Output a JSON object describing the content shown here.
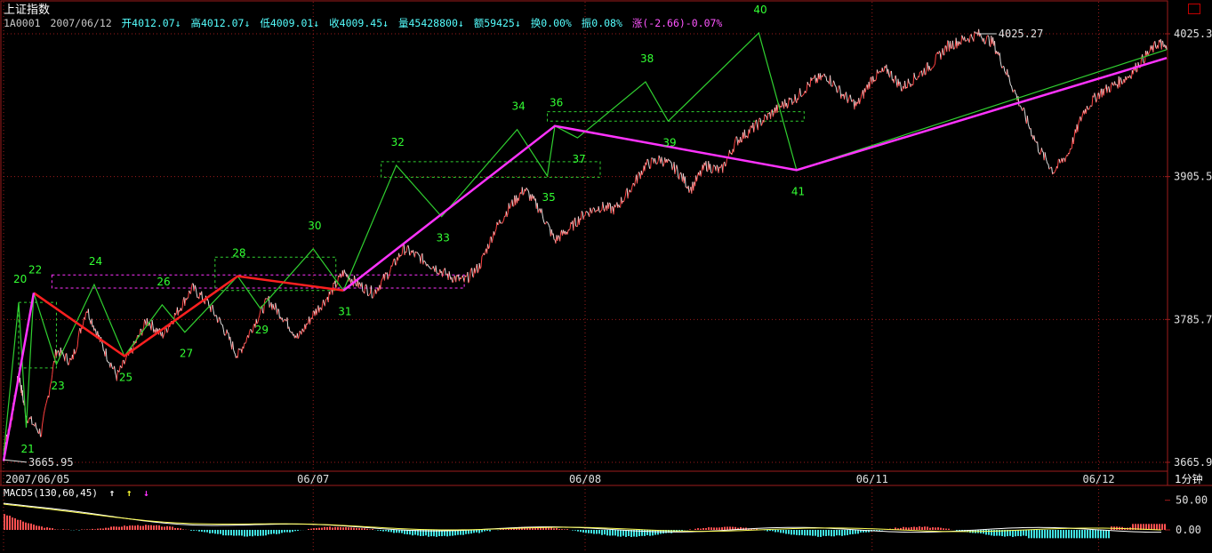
{
  "header": {
    "title": "上证指数",
    "code": "1A0001",
    "date": "2007/06/12",
    "open": "开4012.07↓",
    "high": "高4012.07↓",
    "low": "低4009.01↓",
    "close": "收4009.45↓",
    "volume": "量45428800↓",
    "amount": "额59425↓",
    "turnover": "换0.00%",
    "amplitude": "振0.08%",
    "change": "涨(-2.66)-0.07%"
  },
  "period_button": "1分钟",
  "macd_label": "MACD5(130,60,45)",
  "macd_arrows": [
    "↑",
    "↑",
    "↓"
  ],
  "colors": {
    "background": "#000000",
    "grid": "#9e1b1b",
    "price_up": "#ff4040",
    "price_down": "#e0e0e0",
    "zigzag_minor": "#30d030",
    "zigzag_mid": "#ff2020",
    "zigzag_major": "#ff33ff",
    "label_green": "#33ff33",
    "axis_text": "#e0e0e0",
    "macd_pos": "#ff5050",
    "macd_neg": "#40e0e0"
  },
  "chart_data": {
    "type": "line",
    "series_type": "1-minute price line with zigzag wave annotations",
    "y_ticks": [
      "4025.3",
      "3905.5",
      "3785.7",
      "3665.9"
    ],
    "ylim": [
      3665.9,
      4025.3
    ],
    "x_ticks": [
      "2007/06/05",
      "06/07",
      "06/08",
      "06/11",
      "06/12"
    ],
    "annotations": {
      "max_label": "4025.27",
      "min_label": "3665.95"
    },
    "price_points": [
      [
        0.0,
        3676
      ],
      [
        0.5,
        3700
      ],
      [
        1.0,
        3740
      ],
      [
        1.5,
        3705
      ],
      [
        2.5,
        3690
      ],
      [
        3.5,
        3760
      ],
      [
        4.5,
        3750
      ],
      [
        5.5,
        3795
      ],
      [
        6.5,
        3765
      ],
      [
        7.5,
        3738
      ],
      [
        8.5,
        3760
      ],
      [
        9.5,
        3785
      ],
      [
        10.5,
        3772
      ],
      [
        11.5,
        3792
      ],
      [
        12.5,
        3812
      ],
      [
        13.5,
        3800
      ],
      [
        14.5,
        3780
      ],
      [
        15.5,
        3755
      ],
      [
        16.5,
        3780
      ],
      [
        17.5,
        3802
      ],
      [
        18.5,
        3788
      ],
      [
        19.5,
        3770
      ],
      [
        20.5,
        3790
      ],
      [
        21.5,
        3805
      ],
      [
        22.5,
        3825
      ],
      [
        23.5,
        3815
      ],
      [
        24.5,
        3808
      ],
      [
        25.5,
        3825
      ],
      [
        26.5,
        3845
      ],
      [
        27.5,
        3838
      ],
      [
        28.5,
        3830
      ],
      [
        29.5,
        3822
      ],
      [
        30.5,
        3818
      ],
      [
        31.5,
        3830
      ],
      [
        32.5,
        3860
      ],
      [
        33.5,
        3880
      ],
      [
        34.5,
        3895
      ],
      [
        35.5,
        3878
      ],
      [
        36.5,
        3852
      ],
      [
        37.5,
        3862
      ],
      [
        38.5,
        3875
      ],
      [
        39.5,
        3880
      ],
      [
        40.5,
        3878
      ],
      [
        41.5,
        3895
      ],
      [
        42.5,
        3915
      ],
      [
        43.5,
        3920
      ],
      [
        44.5,
        3912
      ],
      [
        45.5,
        3895
      ],
      [
        46.5,
        3915
      ],
      [
        47.5,
        3910
      ],
      [
        48.5,
        3935
      ],
      [
        49.5,
        3945
      ],
      [
        50.5,
        3955
      ],
      [
        51.5,
        3965
      ],
      [
        52.5,
        3972
      ],
      [
        53.5,
        3985
      ],
      [
        54.5,
        3990
      ],
      [
        55.5,
        3975
      ],
      [
        56.5,
        3965
      ],
      [
        57.5,
        3988
      ],
      [
        58.5,
        3995
      ],
      [
        59.5,
        3980
      ],
      [
        60.5,
        3990
      ],
      [
        61.5,
        4000
      ],
      [
        62.5,
        4015
      ],
      [
        63.5,
        4020
      ],
      [
        64.5,
        4025
      ],
      [
        65.5,
        4018
      ],
      [
        66.5,
        3990
      ],
      [
        67.5,
        3960
      ],
      [
        68.5,
        3930
      ],
      [
        69.5,
        3910
      ],
      [
        70.5,
        3925
      ],
      [
        71.5,
        3960
      ],
      [
        72.5,
        3975
      ],
      [
        73.5,
        3982
      ],
      [
        74.5,
        3990
      ],
      [
        75.5,
        4005
      ],
      [
        76.5,
        4018
      ],
      [
        77.0,
        4012
      ]
    ],
    "waves": [
      {
        "label": "20",
        "x": 1.0,
        "y": 3800
      },
      {
        "label": "21",
        "x": 1.5,
        "y": 3695
      },
      {
        "label": "22",
        "x": 2.0,
        "y": 3808
      },
      {
        "label": "23",
        "x": 3.5,
        "y": 3748
      },
      {
        "label": "24",
        "x": 6.0,
        "y": 3815
      },
      {
        "label": "25",
        "x": 8.0,
        "y": 3755
      },
      {
        "label": "26",
        "x": 10.5,
        "y": 3798
      },
      {
        "label": "27",
        "x": 12.0,
        "y": 3775
      },
      {
        "label": "28",
        "x": 15.5,
        "y": 3822
      },
      {
        "label": "29",
        "x": 17.0,
        "y": 3795
      },
      {
        "label": "30",
        "x": 20.5,
        "y": 3845
      },
      {
        "label": "31",
        "x": 22.5,
        "y": 3810
      },
      {
        "label": "32",
        "x": 26.0,
        "y": 3915
      },
      {
        "label": "33",
        "x": 29.0,
        "y": 3872
      },
      {
        "label": "34",
        "x": 34.0,
        "y": 3945
      },
      {
        "label": "35",
        "x": 36.0,
        "y": 3906
      },
      {
        "label": "36",
        "x": 36.5,
        "y": 3948
      },
      {
        "label": "37",
        "x": 38.0,
        "y": 3938
      },
      {
        "label": "38",
        "x": 42.5,
        "y": 3985
      },
      {
        "label": "39",
        "x": 44.0,
        "y": 3952
      },
      {
        "label": "40",
        "x": 50.0,
        "y": 4026
      },
      {
        "label": "41",
        "x": 52.5,
        "y": 3911
      }
    ]
  },
  "macd_chart": {
    "ticks": [
      "50.00",
      "0.00"
    ],
    "ylim": [
      -30,
      60
    ]
  }
}
